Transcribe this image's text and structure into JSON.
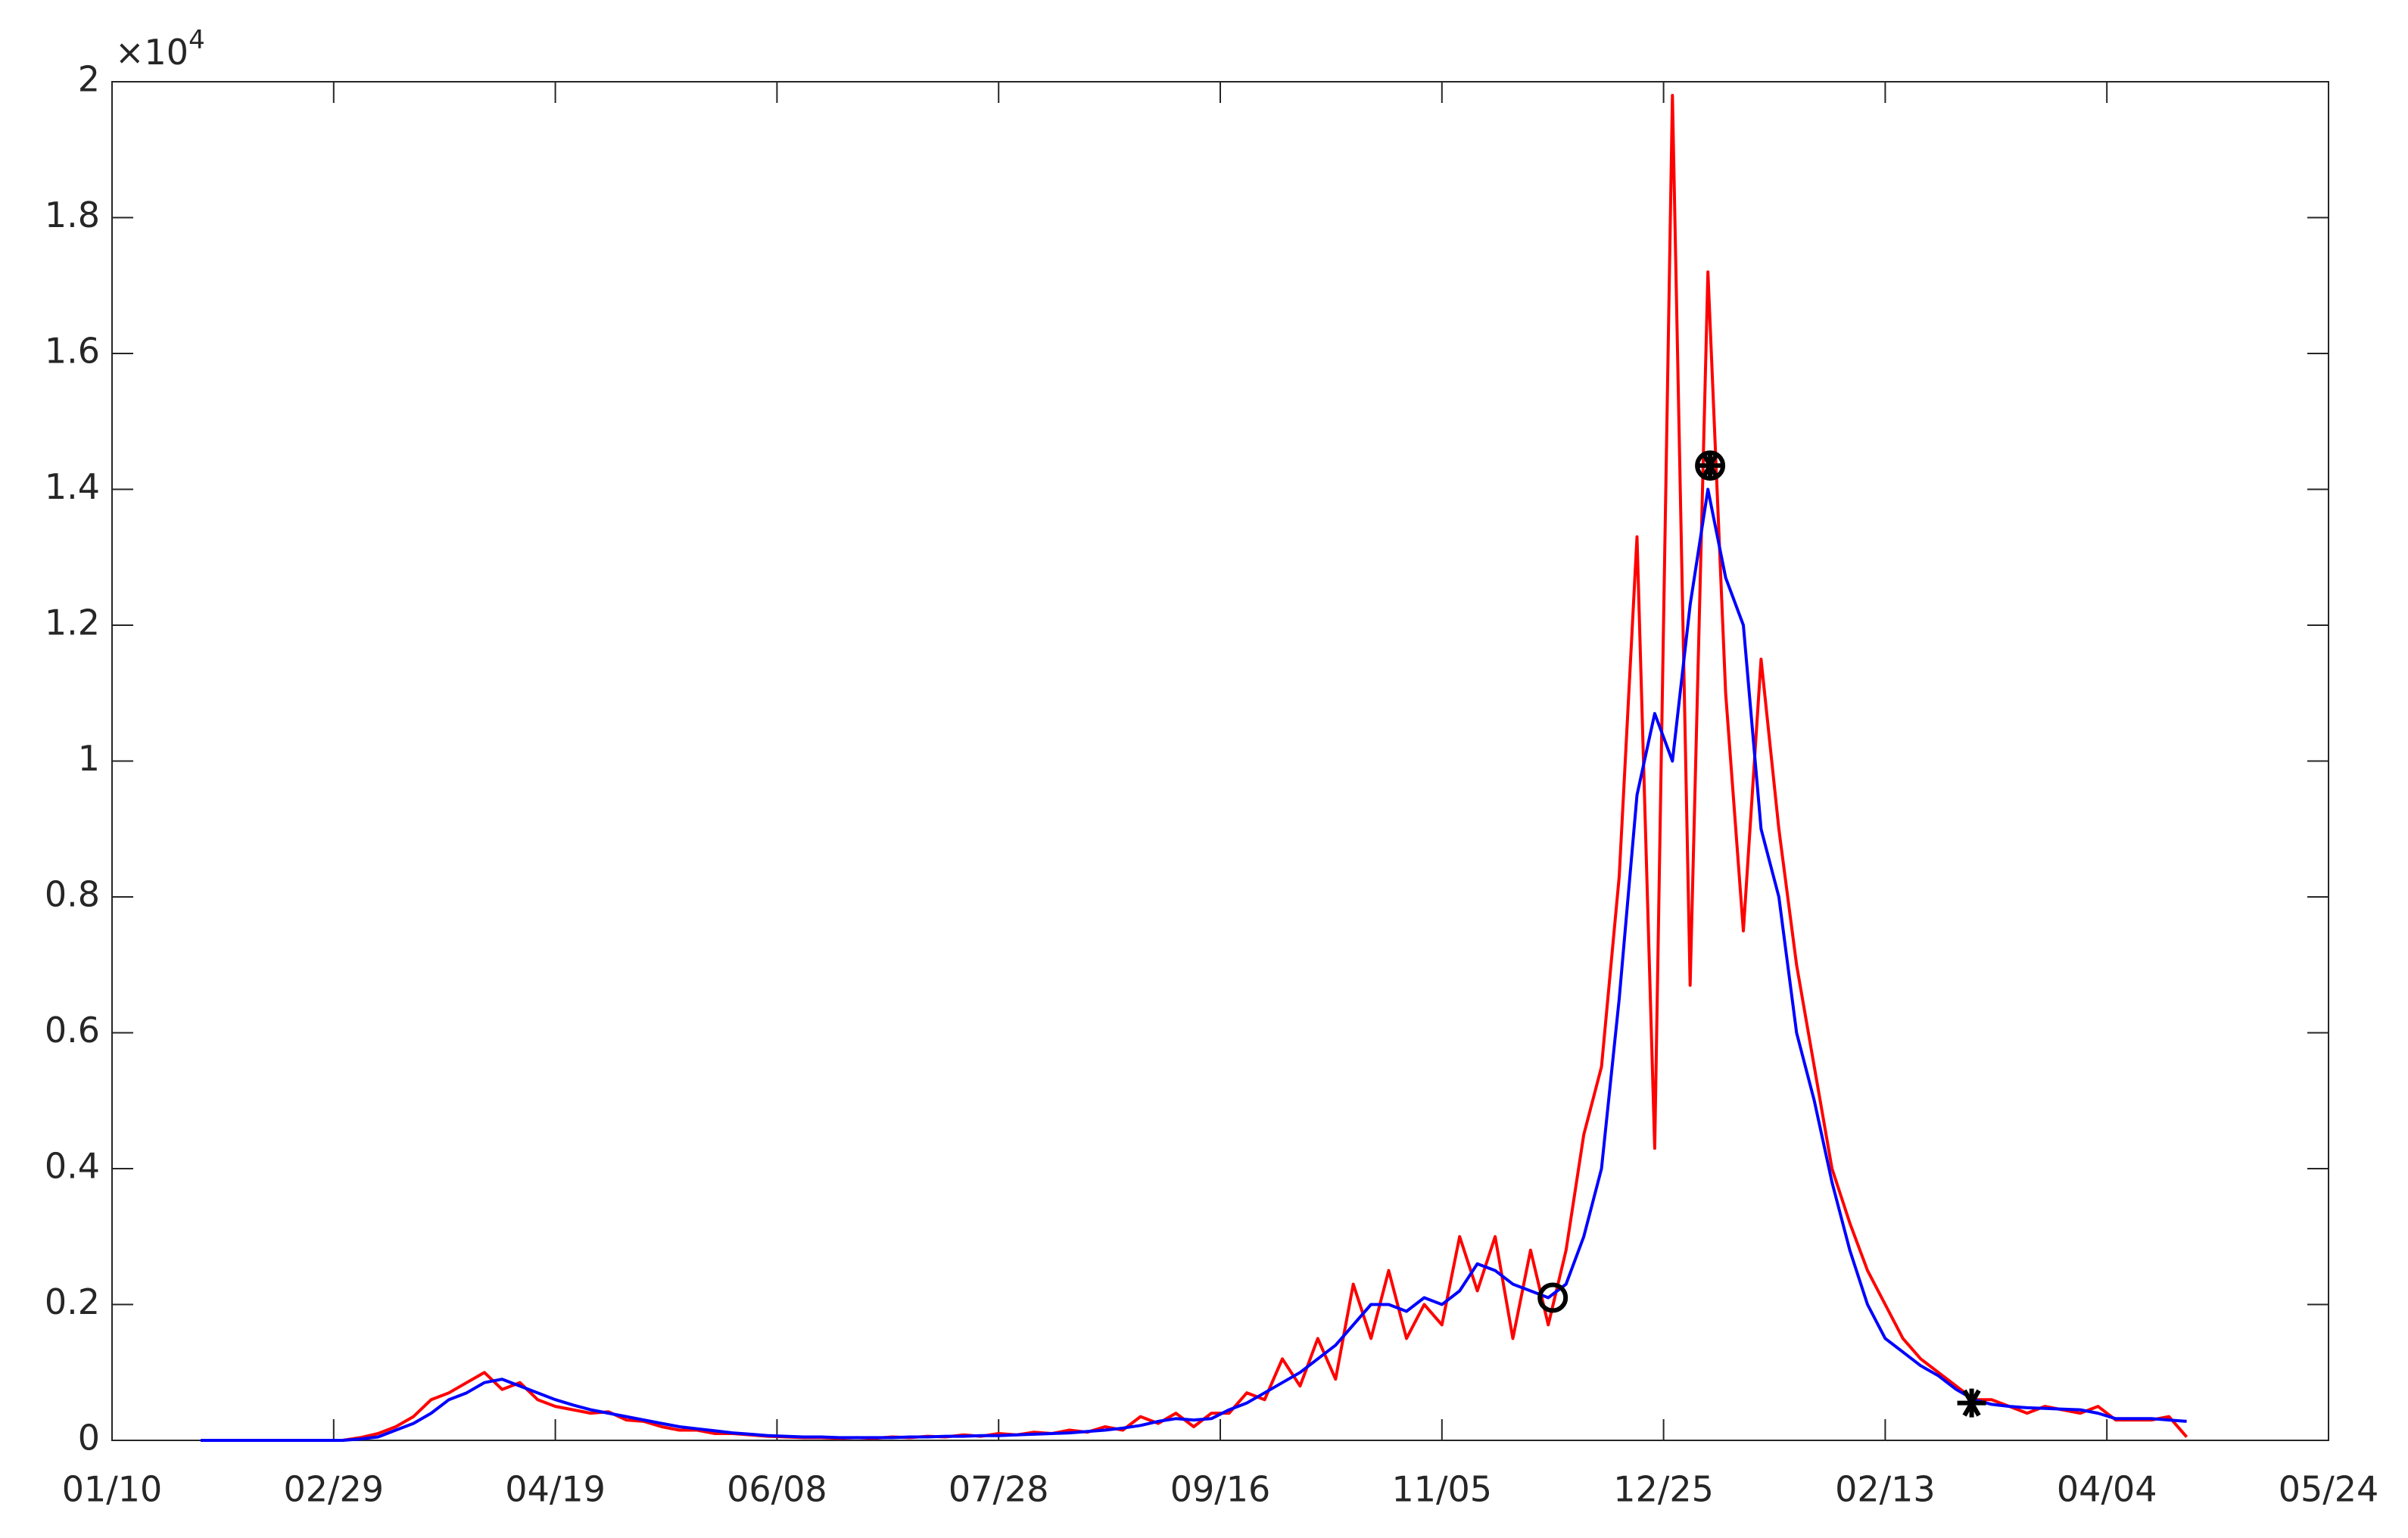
{
  "chart_data": {
    "type": "line",
    "y_exponent": {
      "base": "×10",
      "power": "4"
    },
    "x": [
      20,
      24,
      28,
      32,
      36,
      40,
      44,
      48,
      52,
      56,
      60,
      64,
      68,
      72,
      76,
      80,
      84,
      88,
      92,
      96,
      100,
      104,
      108,
      112,
      116,
      120,
      124,
      128,
      132,
      136,
      140,
      144,
      148,
      152,
      156,
      160,
      164,
      168,
      172,
      176,
      180,
      184,
      188,
      192,
      196,
      200,
      204,
      208,
      212,
      216,
      220,
      224,
      228,
      232,
      236,
      240,
      244,
      248,
      252,
      256,
      260,
      264,
      268,
      272,
      276,
      280,
      284,
      288,
      292,
      296,
      300,
      304,
      308,
      312,
      316,
      320,
      324,
      328,
      332,
      336,
      340,
      344,
      348,
      352,
      356,
      360,
      364,
      368,
      372,
      376,
      380,
      384,
      388,
      392,
      396,
      400,
      404,
      408,
      412,
      416,
      420,
      424,
      428,
      432,
      436,
      440,
      444,
      448,
      452,
      456,
      460,
      464,
      468
    ],
    "series": [
      {
        "color": "#ff0000",
        "values": [
          0,
          0,
          0,
          0,
          0,
          0,
          0,
          0,
          0,
          0.004,
          0.01,
          0.02,
          0.035,
          0.06,
          0.07,
          0.085,
          0.1,
          0.075,
          0.085,
          0.06,
          0.05,
          0.045,
          0.04,
          0.042,
          0.03,
          0.028,
          0.02,
          0.015,
          0.015,
          0.01,
          0.01,
          0.008,
          0.006,
          0.005,
          0.004,
          0.004,
          0.003,
          0.004,
          0.003,
          0.005,
          0.004,
          0.006,
          0.005,
          0.008,
          0.006,
          0.01,
          0.008,
          0.012,
          0.01,
          0.015,
          0.012,
          0.02,
          0.015,
          0.035,
          0.025,
          0.04,
          0.02,
          0.04,
          0.04,
          0.07,
          0.06,
          0.12,
          0.08,
          0.15,
          0.09,
          0.23,
          0.15,
          0.25,
          0.15,
          0.2,
          0.17,
          0.3,
          0.22,
          0.3,
          0.15,
          0.28,
          0.17,
          0.28,
          0.45,
          0.55,
          0.83,
          1.33,
          0.43,
          1.98,
          0.67,
          1.72,
          1.1,
          0.75,
          1.15,
          0.9,
          0.7,
          0.55,
          0.4,
          0.32,
          0.25,
          0.2,
          0.15,
          0.12,
          0.1,
          0.08,
          0.06,
          0.06,
          0.05,
          0.04,
          0.05,
          0.045,
          0.04,
          0.05,
          0.03,
          0.03,
          0.03,
          0.035,
          0.005
        ]
      },
      {
        "color": "#0000ff",
        "values": [
          0,
          0,
          0,
          0,
          0,
          0,
          0,
          0,
          0,
          0.002,
          0.005,
          0.015,
          0.025,
          0.04,
          0.06,
          0.07,
          0.085,
          0.09,
          0.08,
          0.07,
          0.06,
          0.052,
          0.045,
          0.04,
          0.035,
          0.03,
          0.025,
          0.02,
          0.017,
          0.014,
          0.011,
          0.009,
          0.007,
          0.006,
          0.005,
          0.005,
          0.004,
          0.004,
          0.004,
          0.004,
          0.005,
          0.005,
          0.006,
          0.006,
          0.007,
          0.007,
          0.008,
          0.009,
          0.01,
          0.011,
          0.013,
          0.015,
          0.018,
          0.022,
          0.028,
          0.032,
          0.03,
          0.032,
          0.045,
          0.055,
          0.07,
          0.085,
          0.1,
          0.12,
          0.14,
          0.17,
          0.2,
          0.2,
          0.19,
          0.21,
          0.2,
          0.22,
          0.26,
          0.25,
          0.23,
          0.22,
          0.21,
          0.23,
          0.3,
          0.4,
          0.65,
          0.95,
          1.07,
          1.0,
          1.23,
          1.4,
          1.27,
          1.2,
          0.9,
          0.8,
          0.6,
          0.5,
          0.38,
          0.28,
          0.2,
          0.15,
          0.13,
          0.11,
          0.095,
          0.075,
          0.06,
          0.053,
          0.05,
          0.048,
          0.047,
          0.046,
          0.045,
          0.04,
          0.032,
          0.032,
          0.032,
          0.03,
          0.028
        ]
      }
    ],
    "markers": [
      {
        "x": 325,
        "y": 0.21,
        "symbol": "circle"
      },
      {
        "x": 360.5,
        "y": 1.435,
        "symbol": "circle-star"
      },
      {
        "x": 419.5,
        "y": 0.055,
        "symbol": "star"
      }
    ],
    "xlim": [
      0,
      500
    ],
    "xticks": [
      {
        "value": 0,
        "label": "01/10"
      },
      {
        "value": 50,
        "label": "02/29"
      },
      {
        "value": 100,
        "label": "04/19"
      },
      {
        "value": 150,
        "label": "06/08"
      },
      {
        "value": 200,
        "label": "07/28"
      },
      {
        "value": 250,
        "label": "09/16"
      },
      {
        "value": 300,
        "label": "11/05"
      },
      {
        "value": 350,
        "label": "12/25"
      },
      {
        "value": 400,
        "label": "02/13"
      },
      {
        "value": 450,
        "label": "04/04"
      },
      {
        "value": 500,
        "label": "05/24"
      }
    ],
    "ylim": [
      0,
      2
    ],
    "yticks": [
      0,
      0.2,
      0.4,
      0.6,
      0.8,
      1,
      1.2,
      1.4,
      1.6,
      1.8,
      2
    ],
    "grid": false
  }
}
